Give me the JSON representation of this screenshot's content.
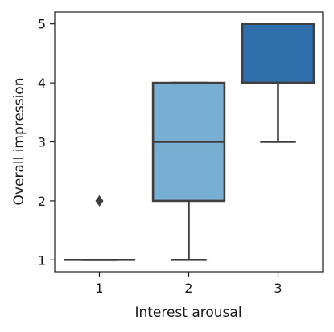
{
  "chart_data": {
    "type": "box",
    "title": "",
    "xlabel": "Interest arousal",
    "ylabel": "Overall impression",
    "categories": [
      "1",
      "2",
      "3"
    ],
    "ylim": [
      0.8,
      5.2
    ],
    "yticks": [
      1,
      2,
      3,
      4,
      5
    ],
    "grid": false,
    "legend": "none",
    "boxes": [
      {
        "category": "1",
        "whisker_low": 1,
        "q1": 1,
        "median": 1,
        "q3": 1,
        "whisker_high": 1,
        "outliers": [
          2
        ],
        "color": "#c6dbef"
      },
      {
        "category": "2",
        "whisker_low": 1,
        "q1": 2,
        "median": 3,
        "q3": 4,
        "whisker_high": 4,
        "outliers": [],
        "color": "#79aed3"
      },
      {
        "category": "3",
        "whisker_low": 3,
        "q1": 4,
        "median": 4,
        "q3": 5,
        "whisker_high": 5,
        "outliers": [],
        "color": "#2f6fab"
      }
    ]
  },
  "colors": {
    "line": "#3f3f3f",
    "axis": "#1a1a1a"
  }
}
